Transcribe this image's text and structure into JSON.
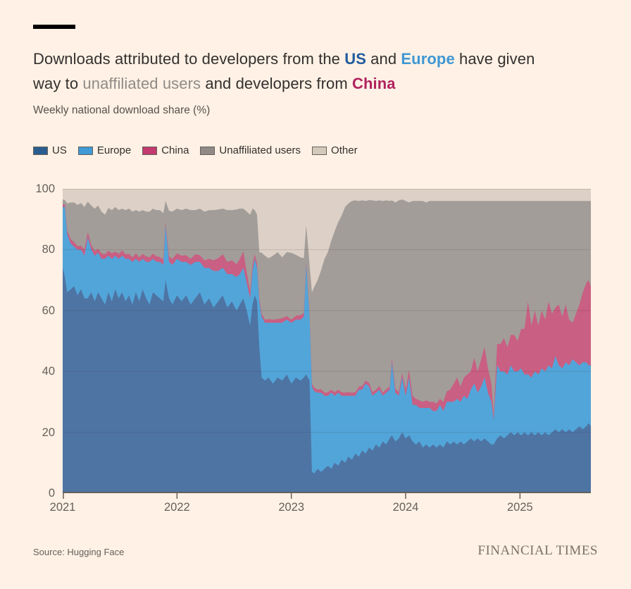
{
  "header": {
    "title_segments": [
      {
        "text": "Downloads attributed to developers from the "
      },
      {
        "text": "US",
        "color_key": "us"
      },
      {
        "text": " and "
      },
      {
        "text": "Europe",
        "color_key": "europe"
      },
      {
        "text": " have given",
        "break_after": true
      },
      {
        "text": "way to "
      },
      {
        "text": "unaffiliated users",
        "color_key": "unaffiliated"
      },
      {
        "text": " and developers from "
      },
      {
        "text": "China",
        "color_key": "china"
      }
    ],
    "title_colors": {
      "us": "#215b9e",
      "europe": "#3e97d4",
      "unaffiliated": "#8f8b86",
      "china": "#af235f"
    }
  },
  "chart_data": {
    "type": "area",
    "stacked": true,
    "title": "Downloads attributed to developers from the US and Europe have given way to unaffiliated users and developers from China",
    "subtitle": "Weekly national download share (%)",
    "ylabel": "Weekly national download share (%)",
    "ylim": [
      0,
      100
    ],
    "yticks": [
      0,
      20,
      40,
      60,
      80,
      100
    ],
    "x_domain": [
      2021,
      2025.62
    ],
    "x_tick_years": [
      2021,
      2022,
      2023,
      2024,
      2025
    ],
    "legend_position": "top-left",
    "grid": "horizontal",
    "series": [
      {
        "name": "US",
        "legend_color": "#2a5d8f",
        "fill": "#4e74a4"
      },
      {
        "name": "Europe",
        "legend_color": "#3f9ad5",
        "fill": "#52a5d9"
      },
      {
        "name": "China",
        "legend_color": "#c23a6e",
        "fill": "#c95f83"
      },
      {
        "name": "Unaffiliated users",
        "legend_color": "#8f8a85",
        "fill": "#a29d99"
      },
      {
        "name": "Other",
        "legend_color": "#d5c9bb",
        "fill": "#ddd0c6"
      }
    ],
    "points_format": [
      "year",
      "US",
      "Europe",
      "China",
      "Unaffiliated users"
    ],
    "points_note": "Other = 100 minus sum of listed series; values are percent shares",
    "points": [
      [
        2021.0,
        74,
        20,
        1.0,
        1.5
      ],
      [
        2021.02,
        71,
        23,
        0.8,
        1.5
      ],
      [
        2021.04,
        66,
        19,
        1.2,
        9
      ],
      [
        2021.07,
        67,
        15,
        1.5,
        12
      ],
      [
        2021.1,
        68,
        13,
        1.5,
        13
      ],
      [
        2021.13,
        65,
        15,
        1.2,
        13.5
      ],
      [
        2021.16,
        67,
        13,
        1.3,
        14
      ],
      [
        2021.19,
        64,
        14,
        2.0,
        14
      ],
      [
        2021.22,
        64,
        20,
        1.8,
        10
      ],
      [
        2021.25,
        66,
        14,
        1.5,
        13
      ],
      [
        2021.28,
        63,
        15,
        1.6,
        13.9
      ],
      [
        2021.31,
        66,
        13,
        1.3,
        14.2
      ],
      [
        2021.34,
        64,
        13,
        1.8,
        13.7
      ],
      [
        2021.37,
        62,
        15,
        1.5,
        13
      ],
      [
        2021.4,
        66,
        12,
        1.7,
        14
      ],
      [
        2021.43,
        63,
        14,
        1.8,
        14.2
      ],
      [
        2021.46,
        67,
        11,
        1.4,
        14.6
      ],
      [
        2021.49,
        64,
        13,
        1.6,
        14.4
      ],
      [
        2021.52,
        66,
        12,
        1.8,
        13.7
      ],
      [
        2021.55,
        63,
        14,
        1.5,
        14.5
      ],
      [
        2021.58,
        65,
        12,
        1.6,
        14.9
      ],
      [
        2021.61,
        62,
        14,
        1.5,
        15
      ],
      [
        2021.64,
        66,
        11,
        1.8,
        14.2
      ],
      [
        2021.67,
        63,
        13,
        1.5,
        15
      ],
      [
        2021.7,
        67,
        10,
        1.6,
        14.4
      ],
      [
        2021.73,
        64,
        12,
        1.8,
        14.7
      ],
      [
        2021.76,
        62,
        14,
        1.5,
        15
      ],
      [
        2021.79,
        66,
        11,
        1.7,
        14.8
      ],
      [
        2021.82,
        65,
        11,
        1.8,
        15.2
      ],
      [
        2021.85,
        64,
        12,
        1.6,
        15.4
      ],
      [
        2021.88,
        63,
        12,
        1.8,
        15.2
      ],
      [
        2021.9,
        70,
        18,
        1.0,
        7
      ],
      [
        2021.93,
        64,
        12,
        1.8,
        15
      ],
      [
        2021.96,
        62,
        13,
        2.0,
        15.5
      ],
      [
        2022.0,
        65,
        12,
        1.8,
        14.7
      ],
      [
        2022.04,
        63,
        13,
        2.0,
        15
      ],
      [
        2022.08,
        65,
        11,
        2.2,
        15.3
      ],
      [
        2022.12,
        62,
        13,
        2.0,
        16
      ],
      [
        2022.16,
        64,
        12,
        2.5,
        14.5
      ],
      [
        2022.2,
        66,
        10,
        2.2,
        15.3
      ],
      [
        2022.24,
        62,
        12,
        2.5,
        16
      ],
      [
        2022.28,
        64,
        10,
        3.0,
        16
      ],
      [
        2022.32,
        61,
        12,
        3.5,
        16.5
      ],
      [
        2022.36,
        63,
        10,
        4.2,
        16
      ],
      [
        2022.4,
        65,
        9,
        4.5,
        15
      ],
      [
        2022.44,
        61,
        11,
        4.0,
        17
      ],
      [
        2022.48,
        63,
        9,
        4.5,
        16.5
      ],
      [
        2022.52,
        60,
        11,
        4.2,
        18
      ],
      [
        2022.55,
        62,
        10,
        5.0,
        16.5
      ],
      [
        2022.58,
        64,
        10,
        5.5,
        14
      ],
      [
        2022.61,
        60,
        9,
        3.5,
        20
      ],
      [
        2022.64,
        55,
        9,
        2.5,
        25
      ],
      [
        2022.66,
        62,
        11,
        2.0,
        18.5
      ],
      [
        2022.68,
        65,
        12,
        1.5,
        14.5
      ],
      [
        2022.7,
        63,
        11,
        1.5,
        16
      ],
      [
        2022.72,
        48,
        15,
        1.2,
        15
      ],
      [
        2022.74,
        38,
        20,
        1.0,
        20
      ],
      [
        2022.77,
        37,
        19,
        1.0,
        21
      ],
      [
        2022.8,
        38,
        18,
        1.2,
        20
      ],
      [
        2022.84,
        36,
        20,
        1.0,
        21
      ],
      [
        2022.88,
        38,
        18,
        1.2,
        22
      ],
      [
        2022.92,
        37,
        19,
        1.5,
        20
      ],
      [
        2022.96,
        39,
        18,
        1.2,
        21
      ],
      [
        2023.0,
        36,
        20,
        1.0,
        22
      ],
      [
        2023.04,
        38,
        19,
        1.3,
        20
      ],
      [
        2023.08,
        37,
        20,
        1.5,
        19
      ],
      [
        2023.11,
        38,
        20,
        1.2,
        18
      ],
      [
        2023.13,
        39,
        36,
        1.0,
        12
      ],
      [
        2023.16,
        37,
        21,
        1.0,
        16
      ],
      [
        2023.18,
        7,
        28,
        1.0,
        30
      ],
      [
        2023.2,
        6.5,
        27,
        1.2,
        33
      ],
      [
        2023.23,
        8,
        25,
        1.0,
        36
      ],
      [
        2023.26,
        7,
        26,
        1.2,
        39
      ],
      [
        2023.29,
        8,
        24,
        1.0,
        44
      ],
      [
        2023.32,
        9,
        23,
        1.2,
        46
      ],
      [
        2023.35,
        8,
        25,
        1.0,
        49
      ],
      [
        2023.38,
        10,
        22,
        1.2,
        53
      ],
      [
        2023.41,
        9,
        24,
        1.0,
        55
      ],
      [
        2023.44,
        11,
        21,
        1.2,
        58
      ],
      [
        2023.47,
        10,
        22,
        1.0,
        61
      ],
      [
        2023.5,
        12,
        20,
        1.2,
        62
      ],
      [
        2023.53,
        11,
        21,
        1.0,
        63
      ],
      [
        2023.56,
        13,
        19,
        1.2,
        63
      ],
      [
        2023.59,
        12,
        22,
        1.0,
        61
      ],
      [
        2023.62,
        14,
        20,
        1.2,
        61
      ],
      [
        2023.65,
        13,
        23,
        1.0,
        59
      ],
      [
        2023.68,
        15,
        20,
        1.3,
        60
      ],
      [
        2023.71,
        14,
        18,
        1.2,
        63
      ],
      [
        2023.74,
        16,
        17,
        1.0,
        62
      ],
      [
        2023.77,
        15,
        19,
        1.2,
        61
      ],
      [
        2023.8,
        17,
        15,
        1.0,
        63
      ],
      [
        2023.83,
        16,
        17,
        1.2,
        62
      ],
      [
        2023.86,
        18,
        16,
        1.0,
        61
      ],
      [
        2023.88,
        19,
        24,
        1.2,
        52
      ],
      [
        2023.91,
        17,
        16,
        1.5,
        61
      ],
      [
        2023.94,
        18,
        14,
        1.2,
        63
      ],
      [
        2023.97,
        20,
        18,
        1.5,
        57
      ],
      [
        2024.0,
        18,
        14,
        2.0,
        62
      ],
      [
        2024.03,
        19,
        19,
        2.5,
        55
      ],
      [
        2024.06,
        17,
        12,
        3.0,
        64
      ],
      [
        2024.09,
        16,
        13,
        2.0,
        65
      ],
      [
        2024.12,
        17,
        11,
        2.5,
        65.5
      ],
      [
        2024.15,
        15,
        13,
        2.0,
        66
      ],
      [
        2024.18,
        16,
        12,
        2.5,
        65
      ],
      [
        2024.21,
        15,
        13,
        2.0,
        66
      ],
      [
        2024.24,
        16,
        11,
        3.0,
        66
      ],
      [
        2024.27,
        15,
        12,
        2.5,
        66.5
      ],
      [
        2024.3,
        16,
        13,
        2.0,
        65
      ],
      [
        2024.33,
        15,
        12,
        3.0,
        66
      ],
      [
        2024.36,
        17,
        13,
        3.5,
        62.5
      ],
      [
        2024.39,
        16,
        14,
        4.0,
        62
      ],
      [
        2024.42,
        17,
        13,
        6.0,
        60
      ],
      [
        2024.45,
        16,
        15,
        7.0,
        58
      ],
      [
        2024.48,
        17,
        13,
        5.0,
        61
      ],
      [
        2024.51,
        16,
        16,
        6.0,
        58
      ],
      [
        2024.54,
        17,
        14,
        8.0,
        57
      ],
      [
        2024.57,
        18,
        16,
        6.0,
        56
      ],
      [
        2024.6,
        17,
        19,
        8.5,
        51.5
      ],
      [
        2024.63,
        18,
        15,
        7.0,
        56
      ],
      [
        2024.66,
        17,
        18,
        9.0,
        52
      ],
      [
        2024.69,
        18,
        20,
        10.0,
        48
      ],
      [
        2024.72,
        17,
        16,
        8.0,
        55
      ],
      [
        2024.75,
        16,
        14,
        6.0,
        60
      ],
      [
        2024.77,
        16,
        8,
        1.5,
        70.5
      ],
      [
        2024.8,
        18,
        24,
        7.0,
        47
      ],
      [
        2024.83,
        19,
        21,
        9.0,
        47
      ],
      [
        2024.86,
        18,
        22,
        11.0,
        45
      ],
      [
        2024.89,
        19,
        20,
        9.0,
        48
      ],
      [
        2024.92,
        20,
        22,
        10.0,
        44
      ],
      [
        2024.95,
        19,
        21,
        12.0,
        44
      ],
      [
        2024.98,
        20,
        20,
        10.0,
        46
      ],
      [
        2025.01,
        19,
        22,
        13.0,
        42
      ],
      [
        2025.04,
        20,
        19,
        15.0,
        42
      ],
      [
        2025.07,
        19,
        20,
        24.0,
        33
      ],
      [
        2025.1,
        20,
        18,
        17.0,
        41
      ],
      [
        2025.13,
        19,
        21,
        20.0,
        36
      ],
      [
        2025.16,
        20,
        19,
        16.0,
        41
      ],
      [
        2025.19,
        19,
        22,
        19.0,
        36
      ],
      [
        2025.22,
        20,
        20,
        17.0,
        39
      ],
      [
        2025.25,
        19,
        23,
        21.0,
        33
      ],
      [
        2025.28,
        20,
        21,
        18.0,
        37
      ],
      [
        2025.31,
        21,
        24,
        16.0,
        35
      ],
      [
        2025.34,
        20,
        22,
        20.0,
        34
      ],
      [
        2025.37,
        21,
        20,
        17.0,
        38
      ],
      [
        2025.4,
        20,
        23,
        19.0,
        34
      ],
      [
        2025.43,
        21,
        21,
        15.0,
        39
      ],
      [
        2025.46,
        20,
        24,
        12.0,
        40
      ],
      [
        2025.49,
        21,
        22,
        16.0,
        37
      ],
      [
        2025.52,
        22,
        20,
        20.0,
        34
      ],
      [
        2025.55,
        21,
        22,
        23.0,
        30
      ],
      [
        2025.58,
        22,
        21,
        26.0,
        27
      ],
      [
        2025.6,
        23,
        19,
        28.0,
        26
      ],
      [
        2025.62,
        22,
        20,
        26.0,
        28
      ]
    ]
  },
  "axes": {
    "y_tick_labels": [
      "100",
      "80",
      "60",
      "40",
      "20",
      "0"
    ],
    "x_tick_labels": [
      "2021",
      "2022",
      "2023",
      "2024",
      "2025"
    ]
  },
  "footer": {
    "source": "Source: Hugging Face",
    "brand": "FINANCIAL TIMES"
  },
  "colors": {
    "background": "#fff1e5",
    "text": "#33302e",
    "muted_text": "#66605b",
    "axis": "#66605b",
    "gridline": "rgba(51,48,46,0.15)"
  }
}
